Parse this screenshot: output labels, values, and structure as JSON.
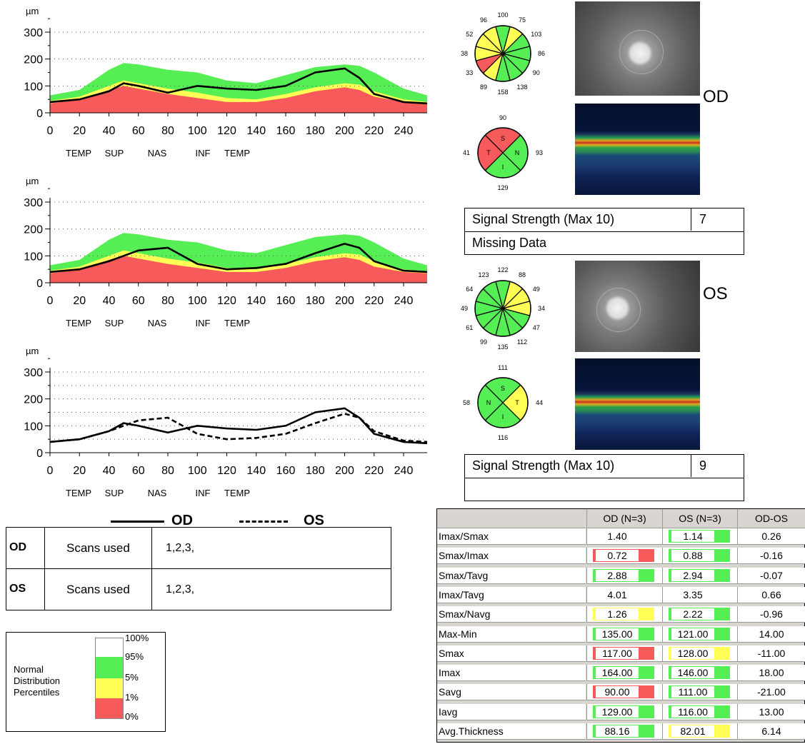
{
  "colors": {
    "green": "#55ee55",
    "yellow": "#ffff55",
    "red": "#f65a5a",
    "white": "#ffffff",
    "scan_dark": "#0a1a3a"
  },
  "charts": {
    "unit": "µm",
    "yticks": [
      "0",
      "100",
      "200",
      "300"
    ],
    "xticks": [
      "0",
      "20",
      "40",
      "60",
      "80",
      "100",
      "120",
      "140",
      "160",
      "180",
      "200",
      "220",
      "240"
    ],
    "regions": [
      "TEMP",
      "SUP",
      "NAS",
      "INF",
      "TEMP"
    ],
    "legend": {
      "od_label": "OD",
      "os_label": "OS"
    }
  },
  "chart_data": [
    {
      "type": "area",
      "title": "",
      "ylabel": "µm",
      "xlim": [
        0,
        256
      ],
      "ylim": [
        0,
        300
      ],
      "x": [
        0,
        20,
        40,
        50,
        60,
        80,
        100,
        120,
        140,
        160,
        180,
        200,
        210,
        220,
        240,
        256
      ],
      "series": [
        {
          "name": "95%",
          "values": [
            65,
            85,
            160,
            185,
            180,
            160,
            150,
            120,
            110,
            140,
            170,
            180,
            175,
            150,
            90,
            65
          ]
        },
        {
          "name": "5%",
          "values": [
            45,
            60,
            100,
            120,
            110,
            90,
            75,
            55,
            50,
            70,
            95,
            110,
            105,
            80,
            50,
            40
          ]
        },
        {
          "name": "1%",
          "values": [
            35,
            50,
            85,
            100,
            90,
            70,
            55,
            40,
            40,
            55,
            80,
            95,
            85,
            60,
            40,
            35
          ]
        },
        {
          "name": "OD",
          "values": [
            40,
            50,
            80,
            110,
            100,
            75,
            100,
            90,
            85,
            100,
            150,
            165,
            130,
            70,
            40,
            35
          ]
        }
      ],
      "x_regions": [
        "TEMP",
        "SUP",
        "NAS",
        "INF",
        "TEMP"
      ]
    },
    {
      "type": "area",
      "title": "",
      "ylabel": "µm",
      "xlim": [
        0,
        256
      ],
      "ylim": [
        0,
        300
      ],
      "x": [
        0,
        20,
        40,
        50,
        60,
        80,
        100,
        120,
        140,
        160,
        180,
        200,
        210,
        220,
        240,
        256
      ],
      "series": [
        {
          "name": "95%",
          "values": [
            65,
            85,
            160,
            185,
            180,
            160,
            150,
            120,
            110,
            140,
            170,
            180,
            175,
            150,
            90,
            65
          ]
        },
        {
          "name": "5%",
          "values": [
            45,
            60,
            100,
            120,
            110,
            90,
            75,
            55,
            50,
            70,
            95,
            110,
            105,
            80,
            50,
            40
          ]
        },
        {
          "name": "1%",
          "values": [
            35,
            50,
            85,
            100,
            90,
            70,
            55,
            40,
            40,
            55,
            80,
            95,
            85,
            60,
            40,
            35
          ]
        },
        {
          "name": "OS",
          "values": [
            40,
            50,
            80,
            100,
            120,
            130,
            70,
            50,
            55,
            70,
            110,
            145,
            130,
            80,
            45,
            40
          ]
        }
      ],
      "x_regions": [
        "TEMP",
        "SUP",
        "NAS",
        "INF",
        "TEMP"
      ]
    },
    {
      "type": "line",
      "title": "",
      "ylabel": "µm",
      "xlim": [
        0,
        256
      ],
      "ylim": [
        0,
        300
      ],
      "x": [
        0,
        20,
        40,
        50,
        60,
        80,
        100,
        120,
        140,
        160,
        180,
        200,
        210,
        220,
        240,
        256
      ],
      "series": [
        {
          "name": "OD",
          "values": [
            40,
            50,
            80,
            110,
            100,
            75,
            100,
            90,
            85,
            100,
            150,
            165,
            130,
            70,
            40,
            35
          ]
        },
        {
          "name": "OS",
          "values": [
            40,
            50,
            80,
            100,
            120,
            130,
            70,
            50,
            55,
            70,
            110,
            145,
            130,
            80,
            45,
            40
          ]
        }
      ],
      "x_regions": [
        "TEMP",
        "SUP",
        "NAS",
        "INF",
        "TEMP"
      ]
    }
  ],
  "sector_charts": {
    "od_clock": [
      "100",
      "75",
      "103",
      "86",
      "90",
      "138",
      "158",
      "89",
      "33",
      "38",
      "52",
      "96"
    ],
    "od_quadrants": {
      "S": "90",
      "N": "93",
      "I": "129",
      "T": "41"
    },
    "os_clock": [
      "122",
      "88",
      "49",
      "34",
      "47",
      "112",
      "135",
      "99",
      "61",
      "49",
      "64",
      "123"
    ],
    "os_quadrants": {
      "S": "111",
      "T": "44",
      "I": "116",
      "N": "58"
    },
    "od_clock_colors": [
      "green",
      "yellow",
      "green",
      "green",
      "green",
      "green",
      "green",
      "yellow",
      "red",
      "yellow",
      "yellow",
      "yellow"
    ],
    "os_clock_colors": [
      "green",
      "yellow",
      "yellow",
      "yellow",
      "green",
      "green",
      "green",
      "green",
      "green",
      "green",
      "green",
      "green"
    ],
    "od_quadrant_colors": {
      "S": "red",
      "N": "green",
      "I": "green",
      "T": "red"
    },
    "os_quadrant_colors": {
      "S": "green",
      "T": "yellow",
      "I": "green",
      "N": "green"
    }
  },
  "eye_labels": {
    "od": "OD",
    "os": "OS"
  },
  "od_signal": {
    "label": "Signal Strength (Max 10)",
    "value": "7",
    "note": "Missing Data"
  },
  "os_signal": {
    "label": "Signal Strength (Max 10)",
    "value": "9",
    "note": ""
  },
  "scans": [
    {
      "eye": "OD",
      "label": "Scans used",
      "value": "1,2,3,"
    },
    {
      "eye": "OS",
      "label": "Scans used",
      "value": "1,2,3,"
    }
  ],
  "percentile_legend": {
    "title_lines": [
      "Normal",
      "Distribution",
      "Percentiles"
    ],
    "ticks": [
      "100%",
      "95%",
      "5%",
      "1%",
      "0%"
    ]
  },
  "metrics": {
    "headers": [
      "",
      "OD (N=3)",
      "OS (N=3)",
      "OD-OS"
    ],
    "rows": [
      {
        "name": "Imax/Smax",
        "od": "1.40",
        "od_color": "white",
        "os": "1.14",
        "os_color": "green",
        "diff": "0.26"
      },
      {
        "name": "Smax/Imax",
        "od": "0.72",
        "od_color": "red",
        "os": "0.88",
        "os_color": "green",
        "diff": "-0.16"
      },
      {
        "name": "Smax/Tavg",
        "od": "2.88",
        "od_color": "green",
        "os": "2.94",
        "os_color": "green",
        "diff": "-0.07"
      },
      {
        "name": "Imax/Tavg",
        "od": "4.01",
        "od_color": "white",
        "os": "3.35",
        "os_color": "white",
        "diff": "0.66"
      },
      {
        "name": "Smax/Navg",
        "od": "1.26",
        "od_color": "yellow",
        "os": "2.22",
        "os_color": "green",
        "diff": "-0.96"
      },
      {
        "name": "Max-Min",
        "od": "135.00",
        "od_color": "green",
        "os": "121.00",
        "os_color": "green",
        "diff": "14.00"
      },
      {
        "name": "Smax",
        "od": "117.00",
        "od_color": "red",
        "os": "128.00",
        "os_color": "yellow",
        "diff": "-11.00"
      },
      {
        "name": "Imax",
        "od": "164.00",
        "od_color": "green",
        "os": "146.00",
        "os_color": "green",
        "diff": "18.00"
      },
      {
        "name": "Savg",
        "od": "90.00",
        "od_color": "red",
        "os": "111.00",
        "os_color": "green",
        "diff": "-21.00"
      },
      {
        "name": "Iavg",
        "od": "129.00",
        "od_color": "green",
        "os": "116.00",
        "os_color": "green",
        "diff": "13.00"
      },
      {
        "name": "Avg.Thickness",
        "od": "88.16",
        "od_color": "green",
        "os": "82.01",
        "os_color": "yellow",
        "diff": "6.14"
      }
    ]
  }
}
